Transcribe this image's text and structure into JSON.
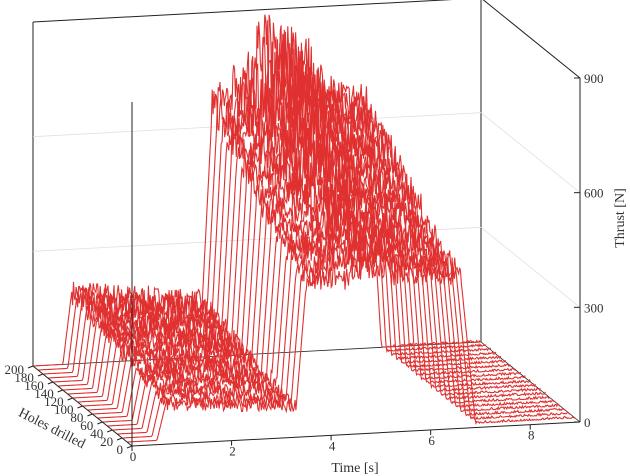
{
  "chart_data": {
    "type": "line",
    "subtype": "3d-waterfall",
    "title": "",
    "xlabel": "Time [s]",
    "ylabel": "Holes drilled",
    "zlabel": "Thrust [N]",
    "xlim": [
      0,
      9
    ],
    "ylim": [
      0,
      200
    ],
    "zlim": [
      0,
      900
    ],
    "x_ticks": [
      {
        "value": 0,
        "label": "0"
      },
      {
        "value": 2,
        "label": "2"
      },
      {
        "value": 4,
        "label": "4"
      },
      {
        "value": 6,
        "label": "6"
      },
      {
        "value": 8,
        "label": "8"
      }
    ],
    "y_ticks": [
      {
        "value": 0,
        "label": "0"
      },
      {
        "value": 20,
        "label": "20"
      },
      {
        "value": 40,
        "label": "40"
      },
      {
        "value": 60,
        "label": "60"
      },
      {
        "value": 80,
        "label": "80"
      },
      {
        "value": 100,
        "label": "100"
      },
      {
        "value": 120,
        "label": "120"
      },
      {
        "value": 140,
        "label": "140"
      },
      {
        "value": 160,
        "label": "160"
      },
      {
        "value": 180,
        "label": "180"
      },
      {
        "value": 200,
        "label": "200"
      }
    ],
    "z_ticks": [
      {
        "value": 0,
        "label": "0"
      },
      {
        "value": 300,
        "label": "300"
      },
      {
        "value": 600,
        "label": "600"
      },
      {
        "value": 900,
        "label": "900"
      }
    ],
    "grid": true,
    "line_color": "#e03030",
    "series": [
      {
        "holes": 10,
        "t_entry": 0.6,
        "t_exit": 7.0,
        "pilot_level": 95,
        "main_level": 390,
        "peak": 460
      },
      {
        "holes": 20,
        "t_entry": 0.6,
        "t_exit": 7.0,
        "pilot_level": 100,
        "main_level": 400,
        "peak": 475
      },
      {
        "holes": 30,
        "t_entry": 0.6,
        "t_exit": 7.0,
        "pilot_level": 105,
        "main_level": 410,
        "peak": 485
      },
      {
        "holes": 40,
        "t_entry": 0.6,
        "t_exit": 7.0,
        "pilot_level": 110,
        "main_level": 420,
        "peak": 500
      },
      {
        "holes": 50,
        "t_entry": 0.6,
        "t_exit": 7.0,
        "pilot_level": 115,
        "main_level": 430,
        "peak": 515
      },
      {
        "holes": 60,
        "t_entry": 0.6,
        "t_exit": 7.0,
        "pilot_level": 120,
        "main_level": 440,
        "peak": 530
      },
      {
        "holes": 70,
        "t_entry": 0.6,
        "t_exit": 7.0,
        "pilot_level": 125,
        "main_level": 455,
        "peak": 545
      },
      {
        "holes": 80,
        "t_entry": 0.6,
        "t_exit": 7.0,
        "pilot_level": 130,
        "main_level": 470,
        "peak": 565
      },
      {
        "holes": 90,
        "t_entry": 0.6,
        "t_exit": 7.0,
        "pilot_level": 135,
        "main_level": 485,
        "peak": 585
      },
      {
        "holes": 100,
        "t_entry": 0.6,
        "t_exit": 7.0,
        "pilot_level": 140,
        "main_level": 500,
        "peak": 605
      },
      {
        "holes": 110,
        "t_entry": 0.6,
        "t_exit": 7.0,
        "pilot_level": 145,
        "main_level": 515,
        "peak": 630
      },
      {
        "holes": 120,
        "t_entry": 0.6,
        "t_exit": 7.0,
        "pilot_level": 150,
        "main_level": 530,
        "peak": 655
      },
      {
        "holes": 130,
        "t_entry": 0.6,
        "t_exit": 7.0,
        "pilot_level": 155,
        "main_level": 545,
        "peak": 680
      },
      {
        "holes": 140,
        "t_entry": 0.6,
        "t_exit": 7.0,
        "pilot_level": 160,
        "main_level": 560,
        "peak": 705
      },
      {
        "holes": 150,
        "t_entry": 0.6,
        "t_exit": 7.0,
        "pilot_level": 165,
        "main_level": 575,
        "peak": 735
      },
      {
        "holes": 160,
        "t_entry": 0.6,
        "t_exit": 7.0,
        "pilot_level": 170,
        "main_level": 590,
        "peak": 765
      },
      {
        "holes": 170,
        "t_entry": 0.6,
        "t_exit": 7.0,
        "pilot_level": 175,
        "main_level": 605,
        "peak": 795
      },
      {
        "holes": 180,
        "t_entry": 0.6,
        "t_exit": 7.0,
        "pilot_level": 180,
        "main_level": 620,
        "peak": 830
      },
      {
        "holes": 190,
        "t_entry": 0.6,
        "t_exit": 7.0,
        "pilot_level": 185,
        "main_level": 635,
        "peak": 870
      },
      {
        "holes": 200,
        "t_entry": 0.6,
        "t_exit": 7.0,
        "pilot_level": 190,
        "main_level": 650,
        "peak": 905
      }
    ]
  }
}
